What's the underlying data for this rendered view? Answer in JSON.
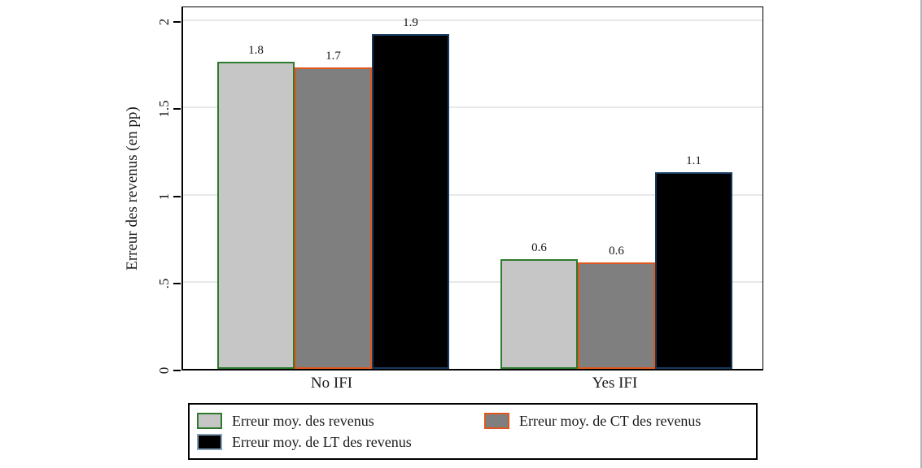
{
  "chart_data": {
    "type": "bar",
    "title": "",
    "ylabel": "Erreur des revenus (en pp)",
    "xlabel": "",
    "ylim": [
      0,
      2
    ],
    "grid": true,
    "legend_position": "bottom",
    "yticks": [
      {
        "value": 0,
        "label": "0"
      },
      {
        "value": 0.5,
        "label": ".5"
      },
      {
        "value": 1,
        "label": "1"
      },
      {
        "value": 1.5,
        "label": "1.5"
      },
      {
        "value": 2,
        "label": "2"
      }
    ],
    "categories": [
      "No IFI",
      "Yes IFI"
    ],
    "series": [
      {
        "name": "Erreur moy. des revenus",
        "values": [
          1.76,
          0.63
        ],
        "value_labels": [
          "1.8",
          "0.6"
        ],
        "fill": "#c6c6c6",
        "border": "#2e7b2e",
        "legend_border": "#2e7b2e"
      },
      {
        "name": "Erreur moy. de CT des revenus",
        "values": [
          1.73,
          0.61
        ],
        "value_labels": [
          "1.7",
          "0.6"
        ],
        "fill": "#7f7f7f",
        "border": "#e0571e",
        "legend_border": "#e0571e"
      },
      {
        "name": "Erreur moy. de LT des revenus",
        "values": [
          1.92,
          1.13
        ],
        "value_labels": [
          "1.9",
          "1.1"
        ],
        "fill": "#000000",
        "border": "#16395e",
        "legend_border": "#84a1bb"
      }
    ]
  },
  "colors": {
    "background": "#ffffff",
    "gridline": "#e8e8e8",
    "axis": "#000000",
    "text": "#1a1a1a",
    "frame_edge": "#b4b4b4"
  }
}
